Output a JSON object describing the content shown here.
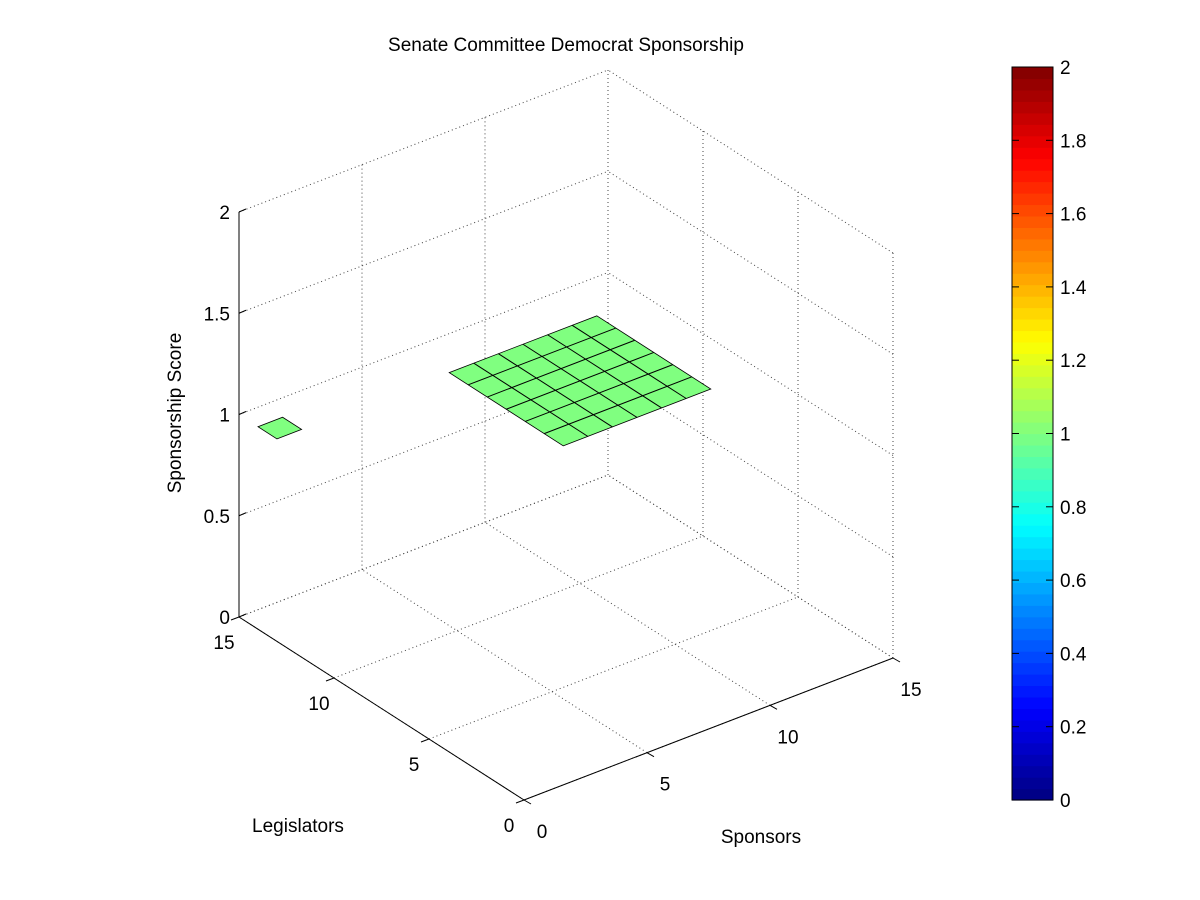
{
  "chart_data": {
    "type": "surface3d",
    "title": "Senate Committee Democrat Sponsorship",
    "xlabel": "Sponsors",
    "ylabel": "Legislators",
    "zlabel": "Sponsorship Score",
    "xlim": [
      0,
      15
    ],
    "ylim": [
      0,
      15
    ],
    "zlim": [
      0,
      2
    ],
    "xticks": [
      "0",
      "5",
      "10",
      "15"
    ],
    "yticks": [
      "0",
      "5",
      "10",
      "15"
    ],
    "zticks": [
      "0",
      "0.5",
      "1",
      "1.5",
      "2"
    ],
    "grid": true,
    "surfaces": [
      {
        "x": [
          0,
          1
        ],
        "y": [
          13,
          14
        ],
        "z": 1
      },
      {
        "x": [
          7,
          13
        ],
        "y": [
          7,
          13
        ],
        "z": 1
      }
    ],
    "colorbar": {
      "colormap": "jet",
      "range": [
        0,
        2
      ],
      "ticks": [
        "0",
        "0.2",
        "0.4",
        "0.6",
        "0.8",
        "1",
        "1.2",
        "1.4",
        "1.6",
        "1.8",
        "2"
      ]
    },
    "surface_color": "#80ff80",
    "edge_color": "#000000"
  }
}
